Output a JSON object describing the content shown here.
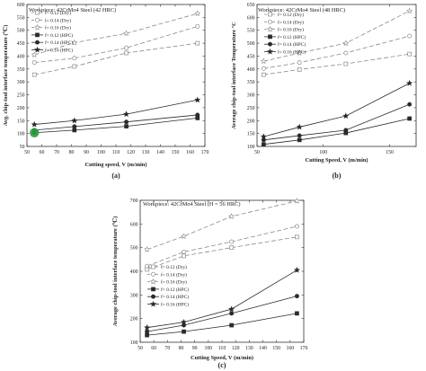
{
  "chart_data": [
    {
      "type": "line",
      "panel_label": "(a)",
      "workpiece": "Workpiece: 42CrMo4 Steel (42 HRC)",
      "xlabel": "Cutting speed, V (m/min)",
      "ylabel": "Avg. chip-tool interface temperature (℃)",
      "xlim": [
        50,
        170
      ],
      "ylim": [
        50,
        600
      ],
      "xticks": [
        50,
        60,
        70,
        80,
        90,
        100,
        110,
        120,
        130,
        140,
        150,
        160,
        170
      ],
      "yticks": [
        50,
        100,
        150,
        200,
        250,
        300,
        350,
        400,
        450,
        500,
        550,
        600
      ],
      "x": [
        55,
        82,
        117,
        165
      ],
      "legend_position": "top-left",
      "series": [
        {
          "name": "f= 0.12 (Dry)",
          "marker": "open-square",
          "dashed": true,
          "values": [
            328,
            360,
            412,
            450
          ]
        },
        {
          "name": "f= 0.14 (Dry)",
          "marker": "open-circle",
          "dashed": true,
          "values": [
            375,
            392,
            432,
            515
          ]
        },
        {
          "name": "f= 0.16 (Dry)",
          "marker": "open-star",
          "dashed": true,
          "values": [
            405,
            452,
            488,
            565
          ]
        },
        {
          "name": "f= 0.12 (HPC)",
          "marker": "filled-square",
          "dashed": false,
          "values": [
            103,
            113,
            128,
            160
          ]
        },
        {
          "name": "f= 0.14 (HPC)",
          "marker": "filled-circle",
          "dashed": false,
          "values": [
            113,
            127,
            145,
            172
          ]
        },
        {
          "name": "f= 0.16 (HPC)",
          "marker": "filled-star",
          "dashed": false,
          "values": [
            135,
            150,
            175,
            230
          ]
        }
      ]
    },
    {
      "type": "line",
      "panel_label": "(b)",
      "workpiece": "Workpiece: 42CrMo4 Steel (48 HRC)",
      "xlabel": "Cutting Speed, V (m/min)",
      "ylabel": "Average chip-tool interface Temperature °C",
      "xlim": [
        50,
        170
      ],
      "ylim": [
        100,
        650
      ],
      "xticks": [
        50,
        100,
        150
      ],
      "yticks": [
        100,
        150,
        200,
        250,
        300,
        350,
        400,
        450,
        500,
        550,
        600,
        650
      ],
      "x": [
        55,
        82,
        117,
        165
      ],
      "legend_position": "top-left",
      "series": [
        {
          "name": "f= 0.12 (Dry)",
          "marker": "open-square",
          "dashed": true,
          "values": [
            378,
            398,
            420,
            458
          ]
        },
        {
          "name": "f= 0.14 (Dry)",
          "marker": "open-circle",
          "dashed": true,
          "values": [
            402,
            425,
            462,
            528
          ]
        },
        {
          "name": "f= 0.16 (Dry)",
          "marker": "open-star",
          "dashed": true,
          "values": [
            430,
            462,
            500,
            625
          ]
        },
        {
          "name": "f= 0.12 (HPC)",
          "marker": "filled-square",
          "dashed": false,
          "values": [
            108,
            125,
            152,
            208
          ]
        },
        {
          "name": "f= 0.14 (HPC)",
          "marker": "filled-circle",
          "dashed": false,
          "values": [
            125,
            142,
            163,
            263
          ]
        },
        {
          "name": "f= 0.16 (HPC)",
          "marker": "filled-star",
          "dashed": false,
          "values": [
            138,
            175,
            218,
            345
          ]
        }
      ]
    },
    {
      "type": "line",
      "panel_label": "(c)",
      "workpiece": "Workpiece: 42CrMo4 Steel (H = 56 HRC)",
      "xlabel": "Cutting Speed, V (m/min)",
      "ylabel": "Average chip-tool interface temperature (℃)",
      "xlim": [
        50,
        170
      ],
      "ylim": [
        100,
        700
      ],
      "xticks": [
        50,
        60,
        70,
        80,
        90,
        100,
        110,
        120,
        130,
        140,
        150,
        160,
        170
      ],
      "yticks": [
        100,
        200,
        300,
        400,
        500,
        600,
        700
      ],
      "x": [
        55,
        82,
        117,
        165
      ],
      "legend_position": "center-left",
      "series": [
        {
          "name": "f= 0.12 (Dry)",
          "marker": "open-square",
          "dashed": true,
          "values": [
            408,
            465,
            500,
            545
          ]
        },
        {
          "name": "f= 0.14 (Dry)",
          "marker": "open-circle",
          "dashed": true,
          "values": [
            422,
            482,
            525,
            590
          ]
        },
        {
          "name": "f= 0.16 (Dry)",
          "marker": "open-star",
          "dashed": true,
          "values": [
            492,
            548,
            632,
            697
          ]
        },
        {
          "name": "f= 0.12 (HPC)",
          "marker": "filled-square",
          "dashed": false,
          "values": [
            130,
            145,
            172,
            222
          ]
        },
        {
          "name": "f= 0.14 (HPC)",
          "marker": "filled-circle",
          "dashed": false,
          "values": [
            145,
            172,
            222,
            295
          ]
        },
        {
          "name": "f= 0.16 (HPC)",
          "marker": "filled-star",
          "dashed": false,
          "values": [
            162,
            185,
            240,
            405
          ]
        }
      ]
    }
  ],
  "highlight": {
    "panel": 0,
    "x": 55,
    "y": 103,
    "color": "#2e9e3f"
  },
  "colors": {
    "dry": "#8a8a8a",
    "hpc": "#2a2a2a",
    "axis": "#333333"
  }
}
